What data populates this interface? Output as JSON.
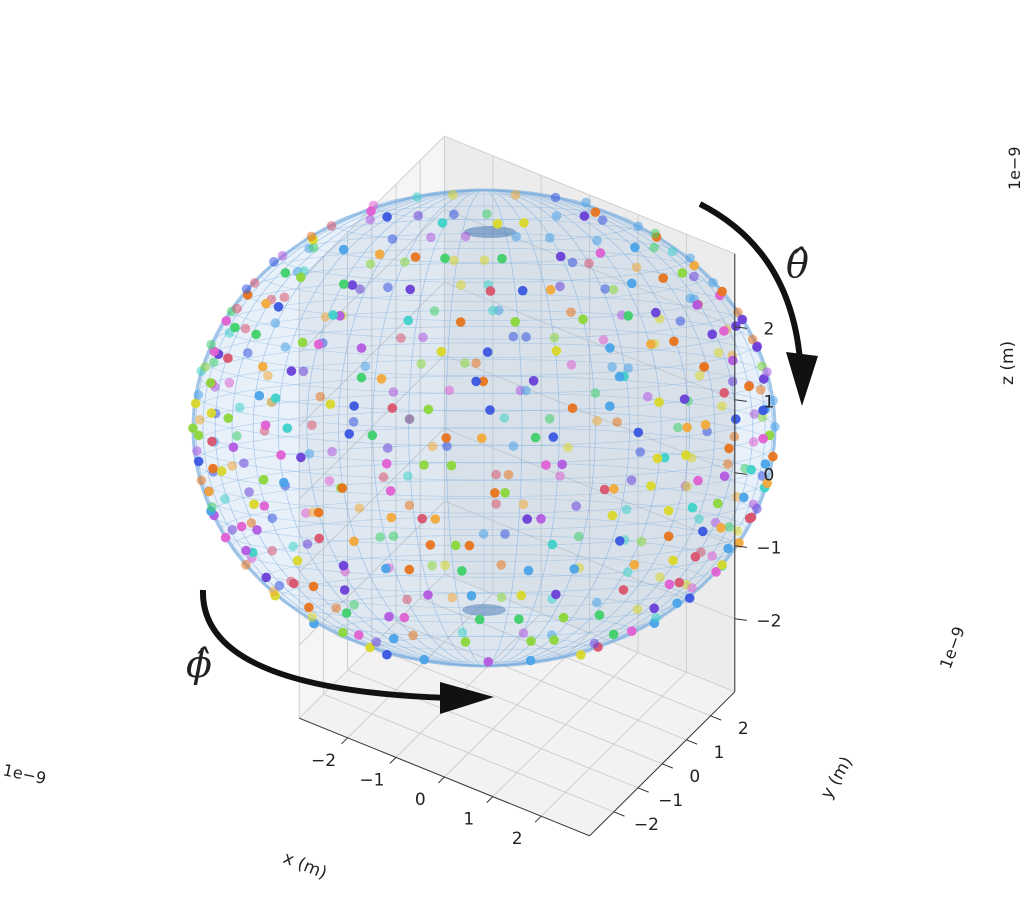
{
  "chart_data": {
    "type": "scatter",
    "projection": "3d",
    "surface": "transparent blue wireframe sphere",
    "point_markers": "colored spheres distributed over the sphere surface",
    "x_axis": {
      "label": "x (m)",
      "offset_text": "1e−9",
      "ticks": [
        "−2",
        "−1",
        "0",
        "1",
        "2"
      ],
      "tick_values": [
        -2,
        -1,
        0,
        1,
        2
      ],
      "range": [
        -3,
        3
      ]
    },
    "y_axis": {
      "label": "y (m)",
      "offset_text": "1e−9",
      "ticks": [
        "−2",
        "−1",
        "0",
        "1",
        "2"
      ],
      "tick_values": [
        -2,
        -1,
        0,
        1,
        2
      ],
      "range": [
        -3,
        3
      ]
    },
    "z_axis": {
      "label": "z (m)",
      "offset_text": "1e−9",
      "ticks": [
        "−2",
        "−1",
        "0",
        "1",
        "2"
      ],
      "tick_values": [
        -2,
        -1,
        0,
        1,
        2
      ],
      "range": [
        -3,
        3
      ]
    },
    "sphere_radius": 2.5,
    "grid": true,
    "annotations": [
      {
        "name": "theta-arrow",
        "text": "θ̂"
      },
      {
        "name": "phi-arrow",
        "text": "ϕ̂"
      }
    ],
    "palette": [
      "#e8741e",
      "#f2a93b",
      "#d9d72a",
      "#8bd73a",
      "#3fd06a",
      "#3fd2c9",
      "#4aa3e8",
      "#3a56e0",
      "#6a3fd8",
      "#b35ae0",
      "#e060d2",
      "#d9546e"
    ],
    "colors": {
      "surface": "#7fb0e0",
      "grid": "#cfcfcf",
      "pane": "#f2f2f2",
      "arrow": "#111111"
    }
  }
}
